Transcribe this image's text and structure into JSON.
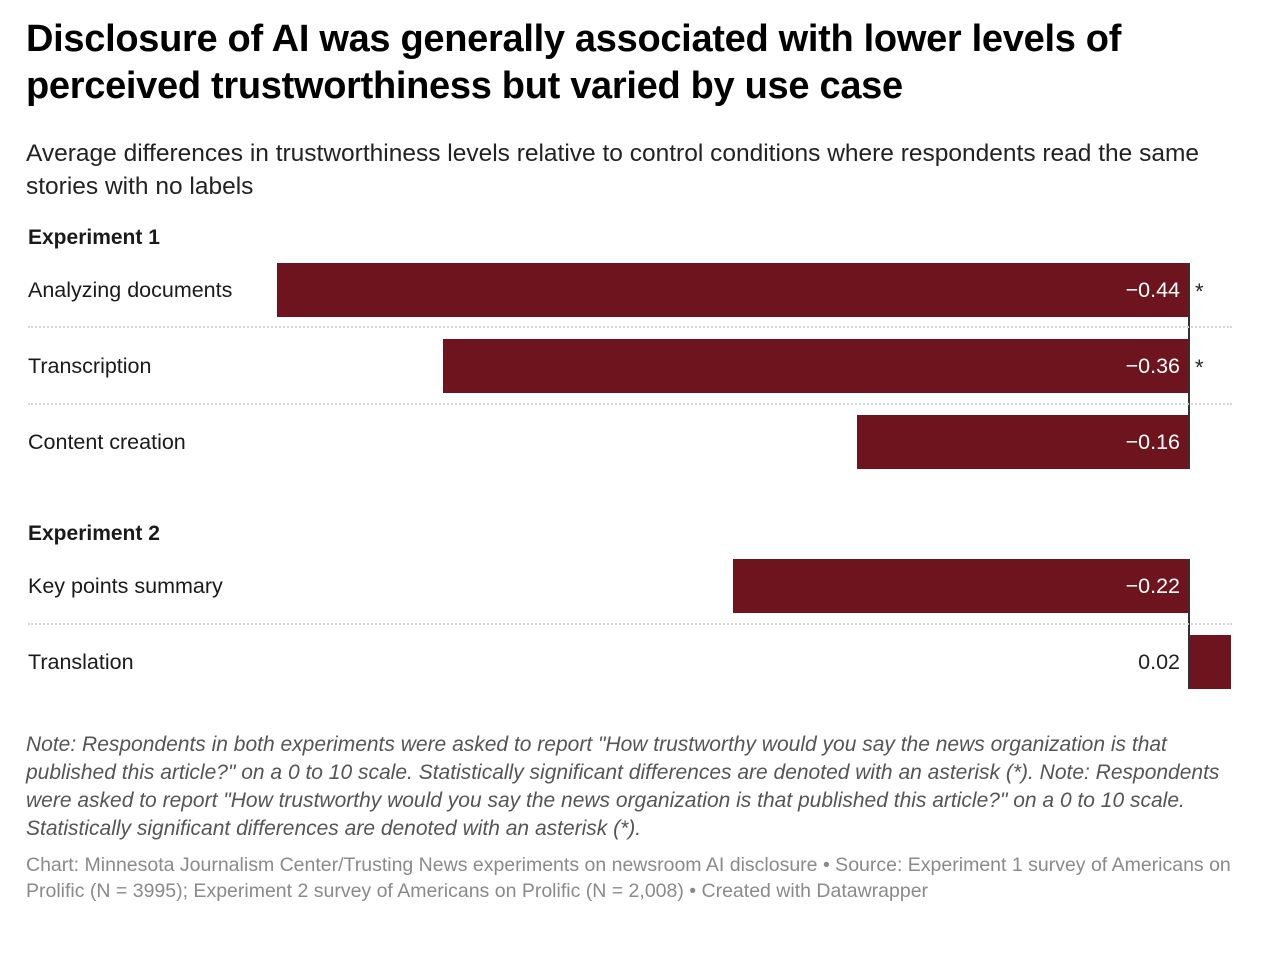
{
  "colors": {
    "bar": "#6e141f",
    "zero_line": "#333333",
    "divider": "#d6d6d6"
  },
  "chart_data": {
    "type": "bar",
    "orientation": "horizontal",
    "title": "Disclosure of AI was generally associated with lower levels of perceived trustworthiness but varied by use case",
    "subtitle": "Average differences in trustworthiness levels relative to control conditions where respondents read the same stories with no labels",
    "xlim": [
      -0.44,
      0.02
    ],
    "groups": [
      {
        "label": "Experiment 1",
        "items": [
          {
            "category": "Analyzing documents",
            "value": -0.44,
            "label": "−0.44",
            "significant": true,
            "marker": "*"
          },
          {
            "category": "Transcription",
            "value": -0.36,
            "label": "−0.36",
            "significant": true,
            "marker": "*"
          },
          {
            "category": "Content creation",
            "value": -0.16,
            "label": "−0.16",
            "significant": false,
            "marker": ""
          }
        ]
      },
      {
        "label": "Experiment 2",
        "items": [
          {
            "category": "Key points summary",
            "value": -0.22,
            "label": "−0.22",
            "significant": false,
            "marker": ""
          },
          {
            "category": "Translation",
            "value": 0.02,
            "label": "0.02",
            "significant": false,
            "marker": ""
          }
        ]
      }
    ]
  },
  "notes": "Note: Respondents in both experiments were asked to report \"How trustworthy would you say the news organization is that published this article?\" on a 0 to 10 scale. Statistically significant differences are denoted with an asterisk (*). Note: Respondents were asked to report \"How trustworthy would you say the news organization is that published this article?\" on a 0 to 10 scale. Statistically significant differences are denoted with an asterisk (*).",
  "source": "Chart: Minnesota Journalism Center/Trusting News experiments on newsroom AI disclosure • Source: Experiment 1 survey of Americans on Prolific (N = 3995); Experiment 2 survey of Americans on Prolific (N = 2,008) • Created with Datawrapper"
}
